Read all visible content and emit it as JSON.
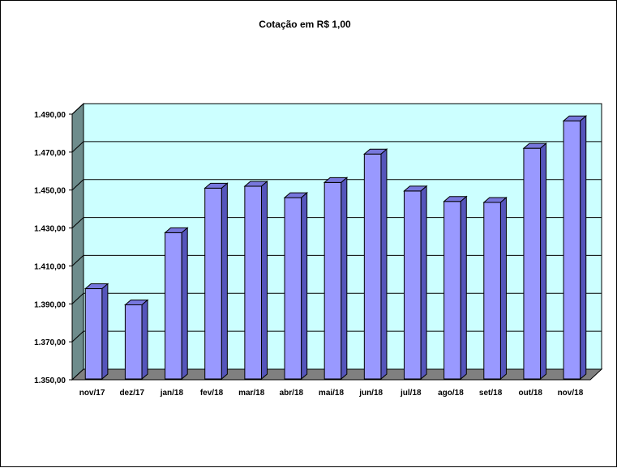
{
  "chart_data": {
    "type": "bar",
    "title": "Cotação em R$ 1,00",
    "xlabel": "",
    "ylabel": "",
    "categories": [
      "nov/17",
      "dez/17",
      "jan/18",
      "fev/18",
      "mar/18",
      "abr/18",
      "mai/18",
      "jun/18",
      "jul/18",
      "ago/18",
      "set/18",
      "out/18",
      "nov/18"
    ],
    "series": [
      {
        "values": [
          1398.0,
          1389.5,
          1427.5,
          1451.0,
          1452.0,
          1446.0,
          1454.0,
          1469.0,
          1449.5,
          1444.0,
          1443.5,
          1472.0,
          1486.5
        ]
      }
    ],
    "ylim": [
      1350,
      1490
    ],
    "yticks": [
      "1.350,00",
      "1.370,00",
      "1.390,00",
      "1.410,00",
      "1.430,00",
      "1.450,00",
      "1.470,00",
      "1.490,00"
    ],
    "ytick_values": [
      1350,
      1370,
      1390,
      1410,
      1430,
      1450,
      1470,
      1490
    ],
    "grid": true,
    "legend": "none",
    "colors": {
      "bar_front": "#9999ff",
      "bar_top": "#7777dd",
      "bar_side": "#5555bb",
      "plot_back": "#ccffff",
      "left_wall": "#6e8c8c",
      "floor": "#808080",
      "grid": "#000000"
    }
  }
}
